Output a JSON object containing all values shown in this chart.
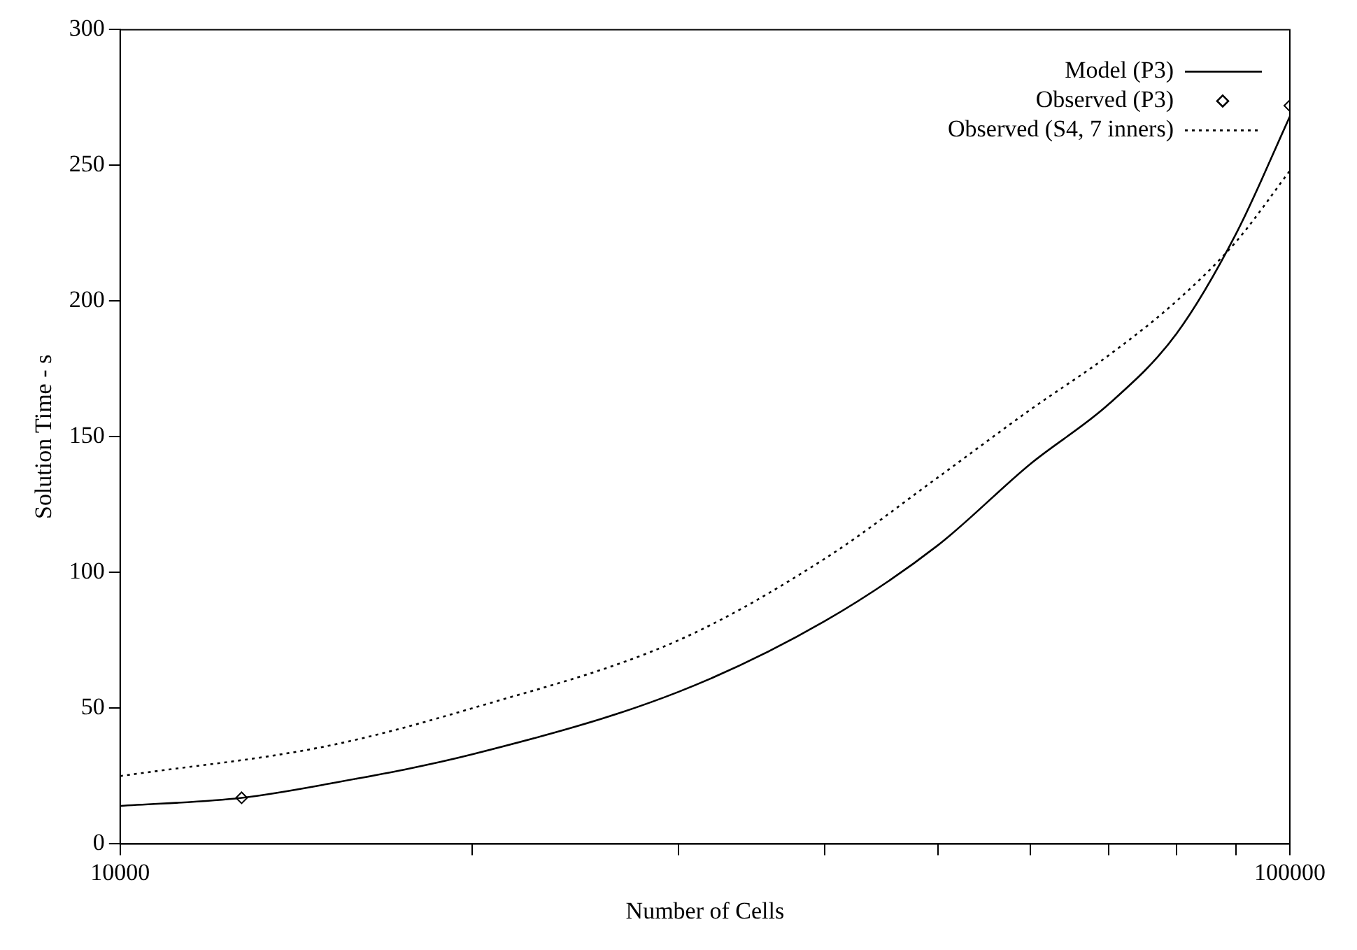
{
  "chart_data": {
    "type": "line",
    "xlabel": "Number of Cells",
    "ylabel": "Solution Time - s",
    "log": "x",
    "xlim": [
      10000,
      100000
    ],
    "ylim": [
      0,
      300
    ],
    "xticks": [
      10000,
      {
        "value": 20000,
        "label": null
      },
      {
        "value": 30000,
        "label": null
      },
      {
        "value": 40000,
        "label": null
      },
      {
        "value": 50000,
        "label": null
      },
      {
        "value": 60000,
        "label": null
      },
      {
        "value": 70000,
        "label": null
      },
      {
        "value": 80000,
        "label": null
      },
      {
        "value": 90000,
        "label": null
      },
      100000
    ],
    "yticks": [
      0,
      50,
      100,
      150,
      200,
      250,
      300
    ],
    "grid": false,
    "legend": "top right",
    "series": [
      {
        "name": "Model (P3)",
        "type": "line",
        "color": "#000000",
        "line_style": "solid",
        "marker": "none",
        "x": [
          10000,
          12700,
          15000,
          20000,
          30000,
          40000,
          50000,
          60000,
          70000,
          80000,
          90000,
          100000
        ],
        "values": [
          14,
          17,
          22,
          33,
          56,
          82,
          110,
          140,
          162,
          188,
          225,
          268
        ]
      },
      {
        "name": "Observed (P3)",
        "type": "scatter",
        "color": "#000000",
        "marker": "diamond",
        "x": [
          12700,
          100000
        ],
        "values": [
          17,
          272
        ]
      },
      {
        "name": "Observed (S4, 7 inners)",
        "type": "line",
        "color": "#000000",
        "line_style": "dotted",
        "marker": "none",
        "x": [
          10000,
          15000,
          20000,
          30000,
          40000,
          50000,
          60000,
          70000,
          80000,
          90000,
          100000
        ],
        "values": [
          25,
          36,
          50,
          75,
          105,
          135,
          160,
          180,
          200,
          222,
          248
        ]
      }
    ]
  }
}
